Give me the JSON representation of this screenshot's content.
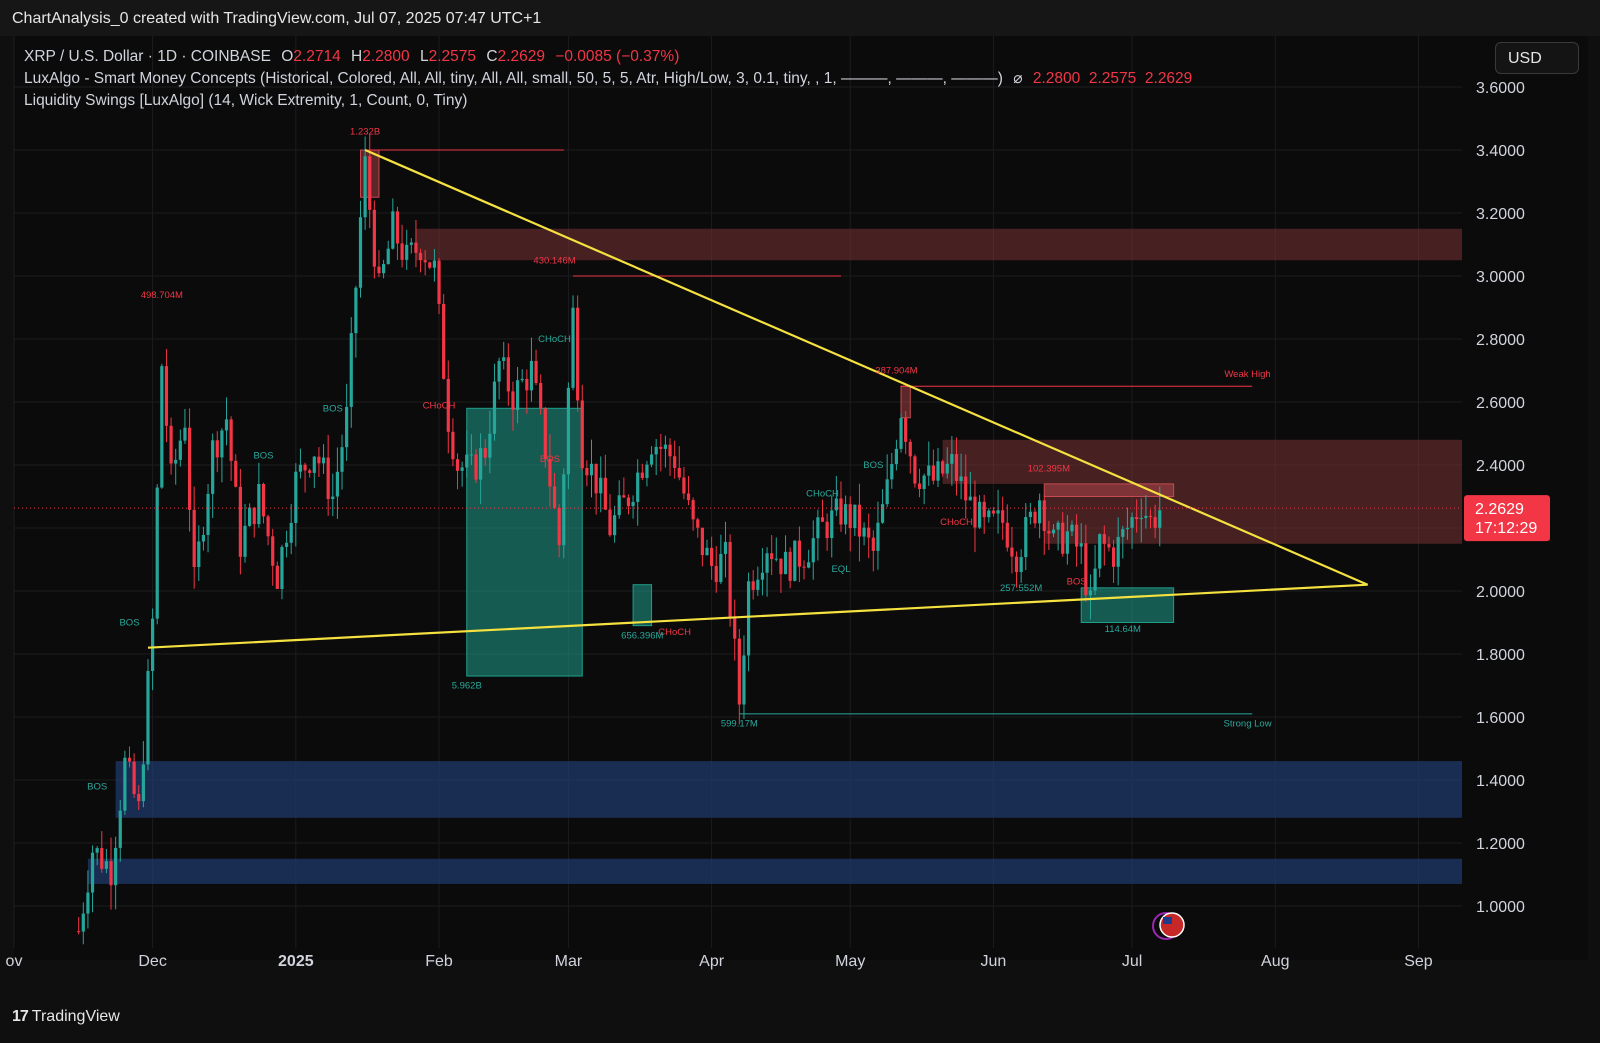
{
  "header": {
    "title": "ChartAnalysis_0 created with TradingView.com, Jul 07, 2025 07:47 UTC+1"
  },
  "legend": {
    "symbol": "XRP / U.S. Dollar · 1D · COINBASE",
    "ohlc": {
      "o_label": "O",
      "o": "2.2714",
      "h_label": "H",
      "h": "2.2800",
      "l_label": "L",
      "l": "2.2575",
      "c_label": "C",
      "c": "2.2629",
      "change": "−0.0085 (−0.37%)"
    },
    "indicator1": "LuxAlgo - Smart Money Concepts (Historical, Colored, All, All, tiny, All, All, small, 50, 5, 5, Atr, High/Low, 3, 0.1, tiny, , 1, ———, ———, ———)",
    "indicator1_symbol": "⌀",
    "indicator1_values": "2.2800  2.2575  2.2629",
    "indicator2": "Liquidity Swings [LuxAlgo] (14, Wick Extremity, 1, Count, 0, Tiny)"
  },
  "currency_button": "USD",
  "price_label": {
    "value": "2.2629",
    "countdown": "17:12:29"
  },
  "footer": {
    "brand": "TradingView"
  },
  "colors": {
    "up": "#26a69a",
    "down": "#f23645",
    "trendline": "#f5e13f",
    "supply_zone": "#7a3535",
    "demand_zone": "#1f3a6b",
    "label_red": "#f23645",
    "label_teal": "#2aa89a"
  },
  "chart_data": {
    "type": "candlestick",
    "title": "",
    "xlabel": "",
    "ylabel": "",
    "y_range": [
      0.9,
      3.7
    ],
    "y_ticks": [
      "3.6000",
      "3.4000",
      "3.2000",
      "3.0000",
      "2.8000",
      "2.6000",
      "2.4000",
      "2.2000",
      "2.0000",
      "1.8000",
      "1.6000",
      "1.4000",
      "1.2000",
      "1.0000"
    ],
    "x_ticks": [
      {
        "label": "ov",
        "date": "2024-11-01"
      },
      {
        "label": "Dec",
        "date": "2024-12-01"
      },
      {
        "label": "2025",
        "date": "2025-01-01"
      },
      {
        "label": "Feb",
        "date": "2025-02-01"
      },
      {
        "label": "Mar",
        "date": "2025-03-01"
      },
      {
        "label": "Apr",
        "date": "2025-04-01"
      },
      {
        "label": "May",
        "date": "2025-05-01"
      },
      {
        "label": "Jun",
        "date": "2025-06-01"
      },
      {
        "label": "Jul",
        "date": "2025-07-01"
      },
      {
        "label": "Aug",
        "date": "2025-08-01"
      },
      {
        "label": "Sep",
        "date": "2025-09-01"
      }
    ],
    "price_path": [
      [
        "2024-11-15",
        0.92
      ],
      [
        "2024-11-18",
        1.18
      ],
      [
        "2024-11-22",
        1.12
      ],
      [
        "2024-11-25",
        1.45
      ],
      [
        "2024-11-28",
        1.3
      ],
      [
        "2024-12-01",
        1.9
      ],
      [
        "2024-12-03",
        2.72
      ],
      [
        "2024-12-05",
        2.35
      ],
      [
        "2024-12-08",
        2.55
      ],
      [
        "2024-12-10",
        2.02
      ],
      [
        "2024-12-14",
        2.45
      ],
      [
        "2024-12-17",
        2.55
      ],
      [
        "2024-12-20",
        2.15
      ],
      [
        "2024-12-24",
        2.3
      ],
      [
        "2024-12-28",
        2.05
      ],
      [
        "2025-01-01",
        2.35
      ],
      [
        "2025-01-05",
        2.45
      ],
      [
        "2025-01-09",
        2.3
      ],
      [
        "2025-01-12",
        2.55
      ],
      [
        "2025-01-15",
        3.18
      ],
      [
        "2025-01-16",
        3.35
      ],
      [
        "2025-01-19",
        2.95
      ],
      [
        "2025-01-22",
        3.15
      ],
      [
        "2025-01-25",
        3.05
      ],
      [
        "2025-01-28",
        3.1
      ],
      [
        "2025-01-31",
        3.02
      ],
      [
        "2025-02-03",
        2.55
      ],
      [
        "2025-02-05",
        2.4
      ],
      [
        "2025-02-08",
        2.38
      ],
      [
        "2025-02-11",
        2.45
      ],
      [
        "2025-02-14",
        2.72
      ],
      [
        "2025-02-17",
        2.62
      ],
      [
        "2025-02-21",
        2.7
      ],
      [
        "2025-02-24",
        2.45
      ],
      [
        "2025-02-27",
        2.15
      ],
      [
        "2025-03-02",
        2.88
      ],
      [
        "2025-03-04",
        2.45
      ],
      [
        "2025-03-07",
        2.35
      ],
      [
        "2025-03-10",
        2.2
      ],
      [
        "2025-03-14",
        2.3
      ],
      [
        "2025-03-19",
        2.48
      ],
      [
        "2025-03-24",
        2.42
      ],
      [
        "2025-03-28",
        2.2
      ],
      [
        "2025-04-01",
        2.08
      ],
      [
        "2025-04-04",
        2.1
      ],
      [
        "2025-04-07",
        1.65
      ],
      [
        "2025-04-09",
        2.02
      ],
      [
        "2025-04-13",
        2.15
      ],
      [
        "2025-04-17",
        2.08
      ],
      [
        "2025-04-21",
        2.12
      ],
      [
        "2025-04-25",
        2.2
      ],
      [
        "2025-04-29",
        2.25
      ],
      [
        "2025-05-02",
        2.22
      ],
      [
        "2025-05-06",
        2.12
      ],
      [
        "2025-05-09",
        2.32
      ],
      [
        "2025-05-12",
        2.58
      ],
      [
        "2025-05-15",
        2.38
      ],
      [
        "2025-05-19",
        2.35
      ],
      [
        "2025-05-23",
        2.4
      ],
      [
        "2025-05-26",
        2.3
      ],
      [
        "2025-05-30",
        2.2
      ],
      [
        "2025-06-03",
        2.22
      ],
      [
        "2025-06-06",
        2.12
      ],
      [
        "2025-06-09",
        2.22
      ],
      [
        "2025-06-11",
        2.3
      ],
      [
        "2025-06-14",
        2.15
      ],
      [
        "2025-06-17",
        2.18
      ],
      [
        "2025-06-20",
        2.12
      ],
      [
        "2025-06-22",
        1.95
      ],
      [
        "2025-06-24",
        2.15
      ],
      [
        "2025-06-27",
        2.12
      ],
      [
        "2025-06-30",
        2.2
      ],
      [
        "2025-07-03",
        2.28
      ],
      [
        "2025-07-05",
        2.22
      ],
      [
        "2025-07-07",
        2.26
      ]
    ],
    "overlays": {
      "upper_trendline": {
        "from": [
          "2025-01-16",
          3.4
        ],
        "to": [
          "2025-08-21",
          2.02
        ]
      },
      "lower_trendline": {
        "from": [
          "2024-11-30",
          1.82
        ],
        "to": [
          "2025-08-21",
          2.02
        ]
      },
      "supply_zones": [
        {
          "from": "2025-01-27",
          "to": "2025-09-05",
          "top": 3.15,
          "bottom": 3.05
        },
        {
          "from": "2025-05-21",
          "to": "2025-09-05",
          "top": 2.48,
          "bottom": 2.34
        },
        {
          "from": "2025-06-12",
          "to": "2025-09-05",
          "top": 2.34,
          "bottom": 2.15
        }
      ],
      "demand_zones": [
        {
          "from": "2024-11-23",
          "to": "2025-09-05",
          "top": 1.46,
          "bottom": 1.28
        },
        {
          "from": "2024-11-17",
          "to": "2025-09-05",
          "top": 1.15,
          "bottom": 1.07
        }
      ],
      "liquidity_boxes": [
        {
          "from": "2025-02-07",
          "to": "2025-03-04",
          "top": 2.58,
          "bottom": 1.73,
          "color": "teal"
        },
        {
          "from": "2025-03-15",
          "to": "2025-03-19",
          "top": 2.02,
          "bottom": 1.89,
          "color": "teal"
        },
        {
          "from": "2025-06-20",
          "to": "2025-07-10",
          "top": 2.01,
          "bottom": 1.9,
          "color": "teal"
        },
        {
          "from": "2025-01-15",
          "to": "2025-01-19",
          "top": 3.4,
          "bottom": 3.25,
          "color": "red"
        },
        {
          "from": "2025-05-12",
          "to": "2025-05-14",
          "top": 2.65,
          "bottom": 2.55,
          "color": "red"
        },
        {
          "from": "2025-06-12",
          "to": "2025-07-10",
          "top": 2.34,
          "bottom": 2.3,
          "color": "red"
        }
      ],
      "levels": [
        {
          "from": "2025-01-16",
          "to": "2025-02-28",
          "price": 3.4,
          "color": "red"
        },
        {
          "from": "2025-03-02",
          "to": "2025-04-29",
          "price": 3.0,
          "color": "red"
        },
        {
          "from": "2025-05-12",
          "to": "2025-07-27",
          "price": 2.65,
          "color": "red"
        },
        {
          "from": "2025-04-07",
          "to": "2025-07-27",
          "price": 1.61,
          "color": "teal"
        }
      ],
      "labels": [
        {
          "text": "1.232B",
          "date": "2025-01-16",
          "price": 3.45,
          "color": "red"
        },
        {
          "text": "498.704M",
          "date": "2024-12-03",
          "price": 2.93,
          "color": "red"
        },
        {
          "text": "430.146M",
          "date": "2025-02-26",
          "price": 3.04,
          "color": "red"
        },
        {
          "text": "387.904M",
          "date": "2025-05-11",
          "price": 2.69,
          "color": "red"
        },
        {
          "text": "102.395M",
          "date": "2025-06-13",
          "price": 2.38,
          "color": "red"
        },
        {
          "text": "Weak High",
          "date": "2025-07-26",
          "price": 2.68,
          "color": "red"
        },
        {
          "text": "CHoCH",
          "date": "2025-02-01",
          "price": 2.58,
          "color": "red"
        },
        {
          "text": "BOS",
          "date": "2025-02-25",
          "price": 2.41,
          "color": "red"
        },
        {
          "text": "CHoCH",
          "date": "2025-03-24",
          "price": 1.86,
          "color": "red"
        },
        {
          "text": "CHoCH",
          "date": "2025-05-24",
          "price": 2.21,
          "color": "red"
        },
        {
          "text": "BOS",
          "date": "2025-06-19",
          "price": 2.02,
          "color": "red"
        },
        {
          "text": "BOS",
          "date": "2024-11-26",
          "price": 1.89,
          "color": "teal"
        },
        {
          "text": "BOS",
          "date": "2024-11-19",
          "price": 1.37,
          "color": "teal"
        },
        {
          "text": "BOS",
          "date": "2024-12-25",
          "price": 2.42,
          "color": "teal"
        },
        {
          "text": "BOS",
          "date": "2025-01-09",
          "price": 2.57,
          "color": "teal"
        },
        {
          "text": "CHoCH",
          "date": "2025-02-26",
          "price": 2.79,
          "color": "teal"
        },
        {
          "text": "CHoCH",
          "date": "2025-04-25",
          "price": 2.3,
          "color": "teal"
        },
        {
          "text": "BOS",
          "date": "2025-05-06",
          "price": 2.39,
          "color": "teal"
        },
        {
          "text": "EQL",
          "date": "2025-04-29",
          "price": 2.06,
          "color": "teal"
        },
        {
          "text": "257.552M",
          "date": "2025-06-07",
          "price": 2.0,
          "color": "teal"
        },
        {
          "text": "656.396M",
          "date": "2025-03-17",
          "price": 1.85,
          "color": "teal"
        },
        {
          "text": "5.962B",
          "date": "2025-02-07",
          "price": 1.69,
          "color": "teal"
        },
        {
          "text": "599.17M",
          "date": "2025-04-07",
          "price": 1.57,
          "color": "teal"
        },
        {
          "text": "114.64M",
          "date": "2025-06-29",
          "price": 1.87,
          "color": "teal"
        },
        {
          "text": "Strong Low",
          "date": "2025-07-26",
          "price": 1.57,
          "color": "teal"
        }
      ]
    }
  }
}
